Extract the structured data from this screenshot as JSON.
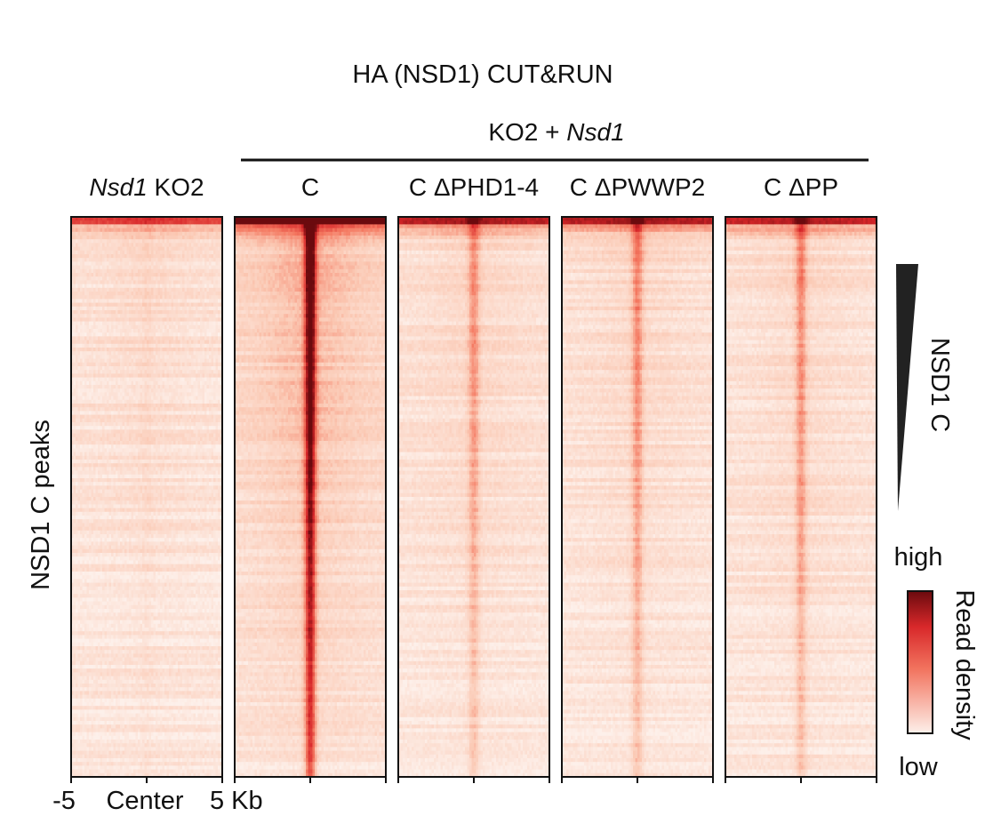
{
  "chart_data": {
    "type": "heatmap",
    "title": "HA (NSD1) CUT&RUN",
    "group_label": {
      "prefix": "KO2 + ",
      "italic": "Nsd1"
    },
    "ylabel": "NSD1 C peaks",
    "sort_label": "NSD1 C",
    "x_ticks": [
      "-5",
      "Center",
      "5 Kb"
    ],
    "x_range_kb": [
      -5,
      5
    ],
    "colorbar": {
      "title": "Read density",
      "high_label": "high",
      "low_label": "low",
      "low_color": "#fdf0ea",
      "high_color": "#6b0a0e"
    },
    "panels": [
      {
        "name": "Nsd1 KO2",
        "label_italic": "Nsd1",
        "label_rest": " KO2",
        "grouped": false,
        "center_intensity": 0.04,
        "top_intensity": 0.55,
        "background": 0.1
      },
      {
        "name": "C",
        "label_italic": "",
        "label_rest": "C",
        "grouped": true,
        "center_intensity": 1.0,
        "top_intensity": 0.95,
        "background": 0.3
      },
      {
        "name": "C ΔPHD1-4",
        "label_italic": "",
        "label_rest": "C ΔPHD1-4",
        "grouped": true,
        "center_intensity": 0.3,
        "top_intensity": 0.7,
        "background": 0.12
      },
      {
        "name": "C ΔPWWP2",
        "label_italic": "",
        "label_rest": "C ΔPWWP2",
        "grouped": true,
        "center_intensity": 0.34,
        "top_intensity": 0.7,
        "background": 0.12
      },
      {
        "name": "C ΔPP",
        "label_italic": "",
        "label_rest": "C ΔPP",
        "grouped": true,
        "center_intensity": 0.34,
        "top_intensity": 0.7,
        "background": 0.12
      }
    ]
  }
}
